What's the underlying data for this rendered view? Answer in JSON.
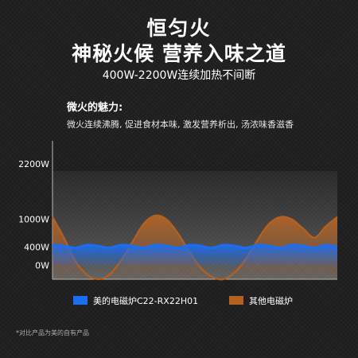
{
  "header": {
    "title": "恒匀火",
    "subtitle": "神秘火候 营养入味之道",
    "power_range": "400W-2200W连续加热不间断"
  },
  "charm": {
    "heading": "微火的魅力:",
    "description": "微火连续沸腾, 促进食材本味, 激发营养析出, 汤浓味香滋香"
  },
  "footnote": "*对比产品为美的自有产品",
  "colors": {
    "midea": "#1a6ef5",
    "other": "#b5601f",
    "background": "#1e1e1f"
  },
  "chart_data": {
    "type": "line",
    "y_tick_labels": [
      "2200W",
      "1000W",
      "400W",
      "0W"
    ],
    "y_tick_values": [
      2200,
      1000,
      400,
      0
    ],
    "ylim": [
      -300,
      2700
    ],
    "xlim": [
      0,
      100
    ],
    "grid": false,
    "legend_position": "bottom",
    "series": [
      {
        "name": "美的电磁炉C22-RX22H01",
        "color": "#1a6ef5",
        "x": [
          0,
          4,
          8,
          12,
          16,
          20,
          24,
          28,
          32,
          36,
          40,
          44,
          48,
          52,
          56,
          60,
          64,
          68,
          72,
          76,
          80,
          84,
          88,
          92,
          96,
          100
        ],
        "values": [
          440,
          420,
          380,
          440,
          420,
          380,
          440,
          420,
          380,
          440,
          420,
          380,
          440,
          420,
          380,
          440,
          420,
          380,
          440,
          420,
          380,
          440,
          420,
          380,
          440,
          400
        ]
      },
      {
        "name": "其他电磁炉",
        "color": "#b5601f",
        "x": [
          0,
          4,
          8,
          12,
          16,
          20,
          24,
          28,
          32,
          36,
          40,
          44,
          48,
          52,
          56,
          60,
          64,
          68,
          72,
          76,
          80,
          84,
          88,
          92,
          96,
          100
        ],
        "values": [
          1050,
          600,
          100,
          -200,
          -300,
          -200,
          100,
          500,
          900,
          1080,
          1000,
          700,
          300,
          -50,
          -250,
          -300,
          -150,
          150,
          550,
          900,
          1050,
          1000,
          800,
          600,
          850,
          1050
        ]
      }
    ]
  }
}
